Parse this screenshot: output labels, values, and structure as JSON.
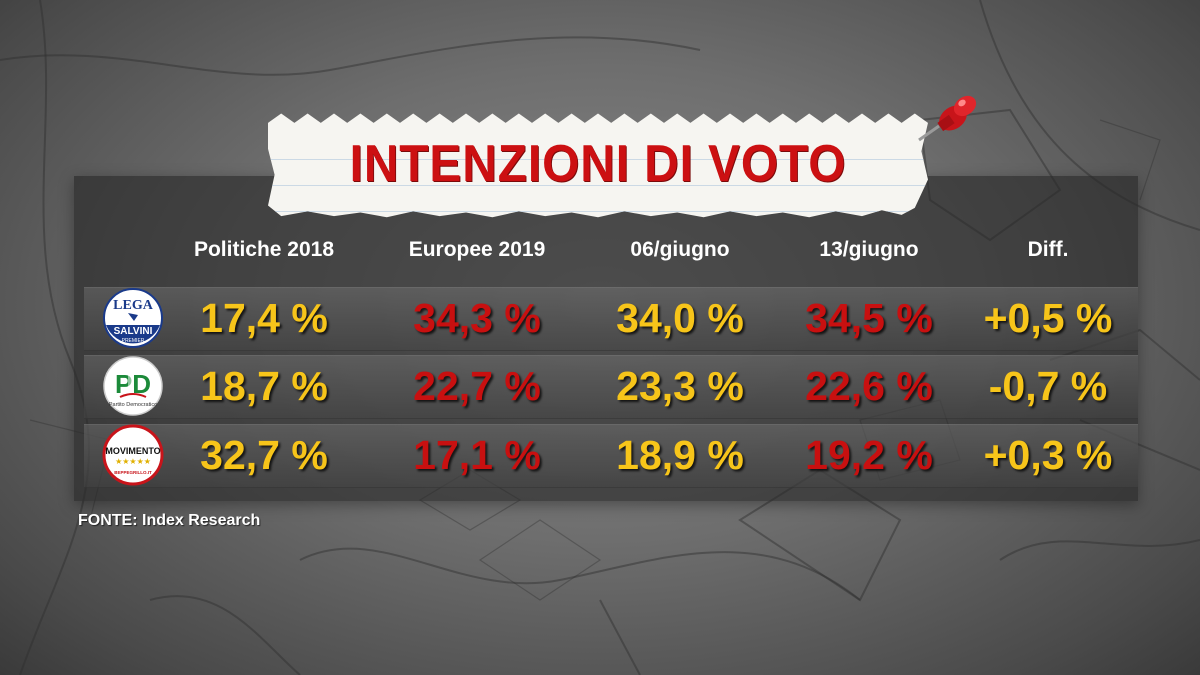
{
  "title": "INTENZIONI DI VOTO",
  "colors": {
    "title_red": "#cc1012",
    "yellow": "#f7c51a",
    "red": "#c81010"
  },
  "chart_data": {
    "type": "table",
    "columns": [
      "Politiche 2018",
      "Europee 2019",
      "06/giugno",
      "13/giugno",
      "Diff."
    ],
    "rows": [
      {
        "party_logo": "lega-salvini-logo",
        "logo_text": {
          "lega": "LEGA",
          "salvini": "SALVINI",
          "premier": "PREMIER"
        },
        "cells": [
          "17,4 %",
          "34,3 %",
          "34,0 %",
          "34,5 %",
          "+0,5 %"
        ],
        "values": [
          17.4,
          34.3,
          34.0,
          34.5,
          0.5
        ],
        "cell_colors": [
          "yellow",
          "red",
          "yellow",
          "red",
          "yellow"
        ]
      },
      {
        "party_logo": "pd-logo",
        "logo_text": {
          "main": "PD",
          "sub": "Partito Democratico"
        },
        "cells": [
          "18,7 %",
          "22,7 %",
          "23,3 %",
          "22,6 %",
          "-0,7 %"
        ],
        "values": [
          18.7,
          22.7,
          23.3,
          22.6,
          -0.7
        ],
        "cell_colors": [
          "yellow",
          "red",
          "yellow",
          "red",
          "yellow"
        ]
      },
      {
        "party_logo": "movimento-5-stelle-logo",
        "logo_text": {
          "main": "MOVIMENTO",
          "stars": "★★★★★",
          "sub": "BEPPEGRILLO.IT"
        },
        "cells": [
          "32,7 %",
          "17,1 %",
          "18,9 %",
          "19,2 %",
          "+0,3 %"
        ],
        "values": [
          32.7,
          17.1,
          18.9,
          19.2,
          0.3
        ],
        "cell_colors": [
          "yellow",
          "red",
          "yellow",
          "red",
          "yellow"
        ]
      }
    ]
  },
  "source": "FONTE:  Index Research"
}
